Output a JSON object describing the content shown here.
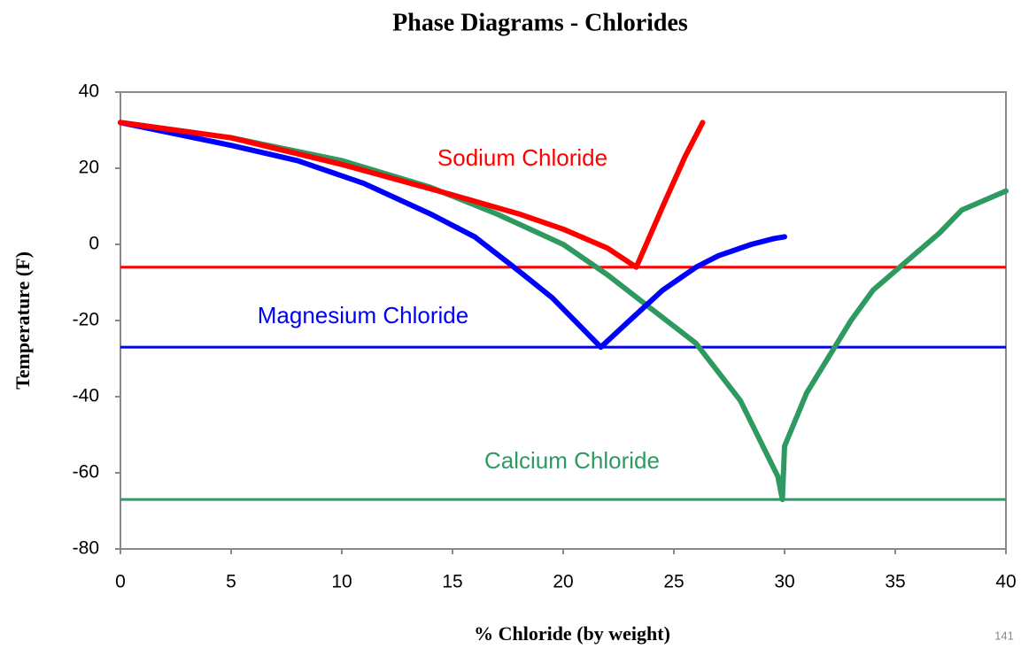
{
  "chart_data": {
    "type": "line",
    "title": "Phase Diagrams - Chlorides",
    "x_label": "% Chloride (by weight)",
    "y_label": "Temperature (F)",
    "page_number": "141",
    "xlim": [
      0,
      40
    ],
    "xticks": [
      0,
      5,
      10,
      15,
      20,
      25,
      30,
      35,
      40
    ],
    "ylim": [
      -80,
      40
    ],
    "yticks": [
      -80,
      -60,
      -40,
      -20,
      0,
      20,
      40
    ],
    "series": [
      {
        "name": "Sodium Chloride",
        "color": "#ff0000",
        "x": [
          0,
          5,
          10,
          15,
          18,
          20,
          22,
          23.3,
          24.5,
          25.5,
          26.3
        ],
        "values": [
          32,
          28,
          21,
          13,
          8,
          4,
          -1,
          -6,
          10,
          23,
          32
        ]
      },
      {
        "name": "Magnesium Chloride",
        "color": "#0000ff",
        "x": [
          0,
          5,
          8,
          11,
          14,
          16,
          18,
          19.5,
          21.7,
          23,
          24.5,
          26,
          27,
          28.5,
          29.5,
          30
        ],
        "values": [
          32,
          26,
          22,
          16,
          8,
          2,
          -7,
          -14,
          -27,
          -20,
          -12,
          -6,
          -3,
          0,
          1.5,
          2
        ]
      },
      {
        "name": "Calcium Chloride",
        "color": "#2e9960",
        "x": [
          0,
          5,
          10,
          14,
          17,
          20,
          22,
          24,
          26,
          28,
          29.7,
          29.9,
          30,
          31,
          33,
          34,
          36,
          37,
          38,
          40
        ],
        "values": [
          32,
          28,
          22,
          15,
          8,
          0,
          -8,
          -17,
          -26,
          -41,
          -61,
          -67,
          -53,
          -39,
          -20,
          -12,
          -2,
          3,
          9,
          14
        ]
      }
    ],
    "reference_lines": [
      {
        "value": -6,
        "color": "#ff0000"
      },
      {
        "value": -27,
        "color": "#0000ff"
      },
      {
        "value": -67,
        "color": "#2e9960"
      }
    ]
  }
}
